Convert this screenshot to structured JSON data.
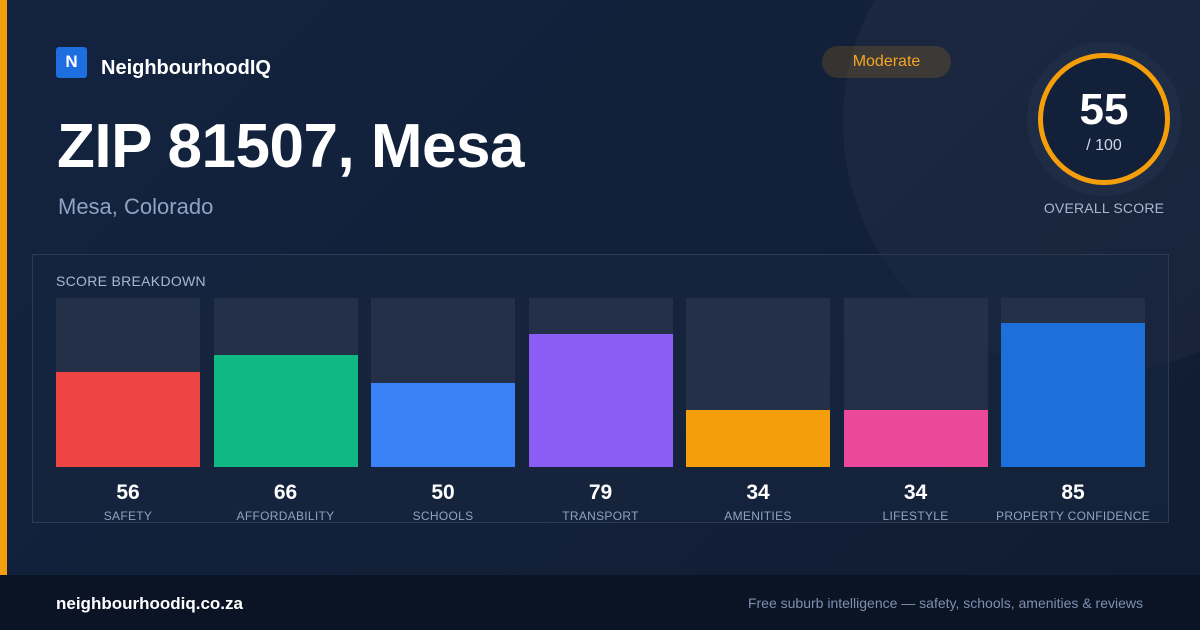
{
  "brand": {
    "logo_letter": "N",
    "name": "NeighbourhoodIQ"
  },
  "badge": {
    "label": "Moderate",
    "color": "#f5a623"
  },
  "header": {
    "title": "ZIP 81507, Mesa",
    "subtitle": "Mesa, Colorado"
  },
  "overall": {
    "score": "55",
    "max": "/ 100",
    "caption": "OVERALL SCORE",
    "ring_color": "#f59e0b"
  },
  "breakdown": {
    "title": "SCORE BREAKDOWN",
    "items": [
      {
        "value": "56",
        "label": "SAFETY",
        "color": "#ef4444"
      },
      {
        "value": "66",
        "label": "AFFORDABILITY",
        "color": "#10b981"
      },
      {
        "value": "50",
        "label": "SCHOOLS",
        "color": "#3b82f6"
      },
      {
        "value": "79",
        "label": "TRANSPORT",
        "color": "#8b5cf6"
      },
      {
        "value": "34",
        "label": "AMENITIES",
        "color": "#f59e0b"
      },
      {
        "value": "34",
        "label": "LIFESTYLE",
        "color": "#ec4899"
      },
      {
        "value": "85",
        "label": "PROPERTY CONFIDENCE",
        "color": "#1d6fdc"
      }
    ]
  },
  "footer": {
    "domain": "neighbourhoodiq.co.za",
    "tagline": "Free suburb intelligence — safety, schools, amenities & reviews"
  }
}
